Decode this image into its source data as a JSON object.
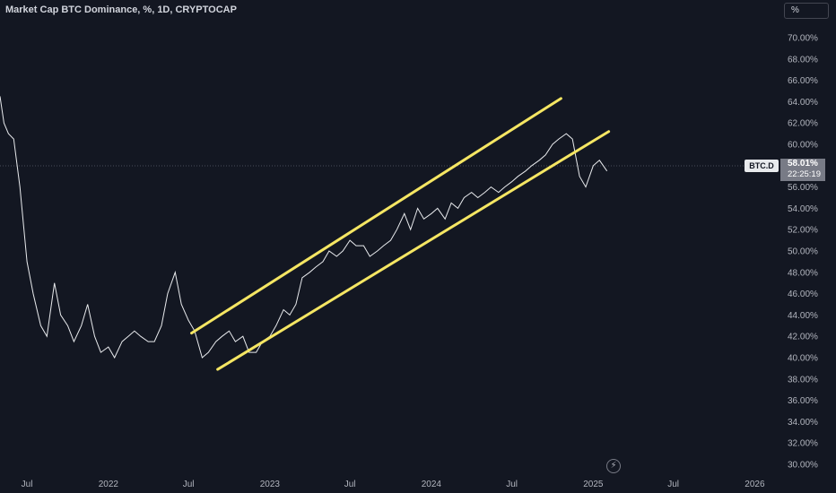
{
  "title": "Market Cap BTC Dominance, %, 1D, CRYPTOCAP",
  "scale_button": "%",
  "ticker": "BTC.D",
  "last_price": "58.01%",
  "countdown": "22:25:19",
  "bolt_icon": "lightning-icon",
  "colors": {
    "background": "#131722",
    "line": "#e8eaed",
    "channel": "#f5e663",
    "axis_text": "#b2b5be"
  },
  "chart_data": {
    "type": "line",
    "title": "Market Cap BTC Dominance, %, 1D, CRYPTOCAP",
    "y_unit": "%",
    "ylim": [
      30,
      70
    ],
    "yticks": [
      "70.00%",
      "68.00%",
      "66.00%",
      "64.00%",
      "62.00%",
      "60.00%",
      "58.00%",
      "56.00%",
      "54.00%",
      "52.00%",
      "50.00%",
      "48.00%",
      "46.00%",
      "44.00%",
      "42.00%",
      "40.00%",
      "38.00%",
      "36.00%",
      "34.00%",
      "32.00%",
      "30.00%"
    ],
    "xticks": [
      "Jul",
      "2022",
      "Jul",
      "2023",
      "Jul",
      "2024",
      "Jul",
      "2025",
      "Jul",
      "2026"
    ],
    "xlim": [
      "2021-05-01",
      "2026-02-28"
    ],
    "grid": false,
    "series": [
      {
        "x": [
          "2021-05-01",
          "2021-05-10",
          "2021-05-20",
          "2021-06-01",
          "2021-06-15",
          "2021-07-01",
          "2021-07-15",
          "2021-08-01",
          "2021-08-15",
          "2021-09-01",
          "2021-09-15",
          "2021-10-01",
          "2021-10-15",
          "2021-11-01",
          "2021-11-15",
          "2021-12-01",
          "2021-12-15",
          "2022-01-01",
          "2022-01-15",
          "2022-02-01",
          "2022-02-15",
          "2022-03-01",
          "2022-03-15",
          "2022-04-01",
          "2022-04-15",
          "2022-05-01",
          "2022-05-15",
          "2022-06-01",
          "2022-06-15",
          "2022-07-01",
          "2022-07-15",
          "2022-08-01",
          "2022-08-15",
          "2022-09-01",
          "2022-09-15",
          "2022-10-01",
          "2022-10-15",
          "2022-11-01",
          "2022-11-15",
          "2022-12-01",
          "2022-12-15",
          "2023-01-01",
          "2023-01-15",
          "2023-02-01",
          "2023-02-15",
          "2023-03-01",
          "2023-03-15",
          "2023-04-01",
          "2023-04-15",
          "2023-05-01",
          "2023-05-15",
          "2023-06-01",
          "2023-06-15",
          "2023-07-01",
          "2023-07-15",
          "2023-08-01",
          "2023-08-15",
          "2023-09-01",
          "2023-09-15",
          "2023-10-01",
          "2023-10-15",
          "2023-11-01",
          "2023-11-15",
          "2023-12-01",
          "2023-12-15",
          "2024-01-01",
          "2024-01-15",
          "2024-02-01",
          "2024-02-15",
          "2024-03-01",
          "2024-03-15",
          "2024-04-01",
          "2024-04-15",
          "2024-05-01",
          "2024-05-15",
          "2024-06-01",
          "2024-06-15",
          "2024-07-01",
          "2024-07-15",
          "2024-08-01",
          "2024-08-15",
          "2024-09-01",
          "2024-09-15",
          "2024-10-01",
          "2024-10-15",
          "2024-11-01",
          "2024-11-15",
          "2024-12-01",
          "2024-12-15",
          "2025-01-01",
          "2025-01-15",
          "2025-02-01"
        ],
        "y": [
          64.5,
          62.0,
          61.0,
          60.5,
          56.0,
          49.0,
          46.0,
          43.0,
          42.0,
          47.0,
          44.0,
          43.0,
          41.5,
          43.0,
          45.0,
          42.0,
          40.5,
          41.0,
          40.0,
          41.5,
          42.0,
          42.5,
          42.0,
          41.5,
          41.5,
          43.0,
          46.0,
          48.0,
          45.0,
          43.5,
          42.5,
          40.0,
          40.5,
          41.5,
          42.0,
          42.5,
          41.5,
          42.0,
          40.5,
          40.5,
          41.5,
          42.0,
          43.0,
          44.5,
          44.0,
          45.0,
          47.5,
          48.0,
          48.5,
          49.0,
          50.0,
          49.5,
          50.0,
          51.0,
          50.5,
          50.5,
          49.5,
          50.0,
          50.5,
          51.0,
          52.0,
          53.5,
          52.0,
          54.0,
          53.0,
          53.5,
          54.0,
          53.0,
          54.5,
          54.0,
          55.0,
          55.5,
          55.0,
          55.5,
          56.0,
          55.5,
          56.0,
          56.5,
          57.0,
          57.5,
          58.0,
          58.5,
          59.0,
          60.0,
          60.5,
          61.0,
          60.5,
          57.0,
          56.0,
          58.0,
          58.5,
          57.5
        ]
      }
    ],
    "annotations": [
      {
        "type": "trendline",
        "name": "upper-channel",
        "from": [
          "2022-07-08",
          42.3
        ],
        "to": [
          "2024-10-20",
          64.3
        ]
      },
      {
        "type": "trendline",
        "name": "lower-channel",
        "from": [
          "2022-09-05",
          38.9
        ],
        "to": [
          "2025-02-05",
          61.2
        ]
      }
    ]
  }
}
